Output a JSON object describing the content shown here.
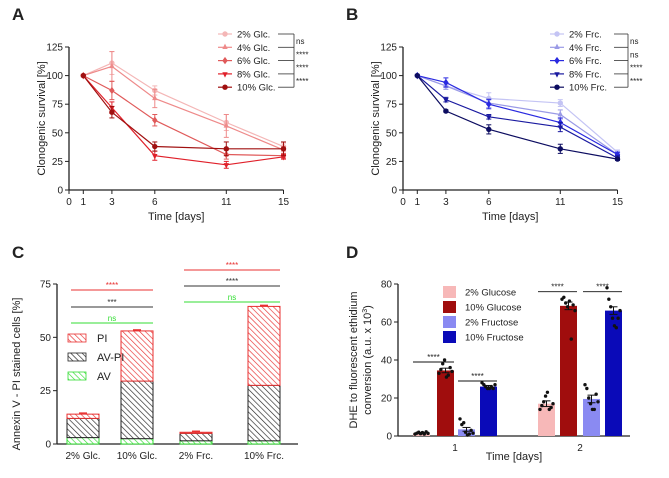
{
  "chart_data": [
    {
      "panel": "A",
      "type": "line",
      "xlabel": "Time [days]",
      "ylabel": "Clonogenic survival [%]",
      "x": [
        1,
        3,
        6,
        11,
        15
      ],
      "xticks": [
        0,
        1,
        3,
        6,
        11,
        15
      ],
      "yticks": [
        0,
        25,
        50,
        75,
        100,
        125
      ],
      "ylim": [
        0,
        125
      ],
      "legend": "top-right",
      "series": [
        {
          "name": "2% Glc.",
          "color": "#f4b6b6",
          "marker": "circle",
          "values": [
            100,
            111,
            87,
            59,
            38
          ],
          "err": [
            0,
            10,
            4,
            7,
            3
          ]
        },
        {
          "name": "4% Glc.",
          "color": "#ee8a8a",
          "marker": "triangle-up",
          "values": [
            100,
            108,
            80,
            56,
            35
          ],
          "err": [
            0,
            13,
            8,
            10,
            3
          ]
        },
        {
          "name": "6% Glc.",
          "color": "#e05a5a",
          "marker": "diamond",
          "values": [
            100,
            87,
            61,
            31,
            30
          ],
          "err": [
            0,
            8,
            5,
            4,
            2
          ]
        },
        {
          "name": "8% Glc.",
          "color": "#e0202a",
          "marker": "triangle-down",
          "values": [
            100,
            72,
            30,
            22,
            29
          ],
          "err": [
            0,
            5,
            4,
            3,
            2
          ]
        },
        {
          "name": "10% Glc.",
          "color": "#a01010",
          "marker": "circle",
          "values": [
            100,
            68,
            38,
            36,
            36
          ],
          "err": [
            0,
            5,
            4,
            6,
            6
          ]
        }
      ],
      "significance": [
        "ns",
        "****",
        "****",
        "****"
      ]
    },
    {
      "panel": "B",
      "type": "line",
      "xlabel": "Time [days]",
      "ylabel": "Clonogenic survival [%]",
      "x": [
        1,
        3,
        6,
        11,
        15
      ],
      "xticks": [
        0,
        1,
        3,
        6,
        11,
        15
      ],
      "yticks": [
        0,
        25,
        50,
        75,
        100,
        125
      ],
      "ylim": [
        0,
        125
      ],
      "legend": "top-right",
      "series": [
        {
          "name": "2% Frc.",
          "color": "#c4c4f4",
          "marker": "circle",
          "values": [
            100,
            91,
            80,
            76,
            33
          ],
          "err": [
            0,
            3,
            5,
            3,
            2
          ]
        },
        {
          "name": "4% Frc.",
          "color": "#9a9ae6",
          "marker": "triangle-up",
          "values": [
            100,
            91,
            76,
            66,
            31
          ],
          "err": [
            0,
            3,
            4,
            4,
            2
          ]
        },
        {
          "name": "6% Frc.",
          "color": "#2a2ae0",
          "marker": "diamond",
          "values": [
            100,
            94,
            75,
            59,
            31
          ],
          "err": [
            0,
            4,
            4,
            4,
            2
          ]
        },
        {
          "name": "8% Frc.",
          "color": "#1a1aa0",
          "marker": "triangle-down",
          "values": [
            100,
            79,
            64,
            55,
            28
          ],
          "err": [
            0,
            2,
            2,
            4,
            2
          ]
        },
        {
          "name": "10% Frc.",
          "color": "#0c0c60",
          "marker": "circle",
          "values": [
            100,
            69,
            53,
            36,
            27
          ],
          "err": [
            0,
            1,
            4,
            4,
            1
          ]
        }
      ],
      "significance": [
        "ns",
        "ns",
        "****",
        "****"
      ]
    },
    {
      "panel": "C",
      "type": "bar",
      "stacked": true,
      "ylabel": "Annexin V - PI stained cells [%]",
      "categories": [
        "2% Glc.",
        "10% Glc.",
        "2% Frc.",
        "10% Frc."
      ],
      "yticks": [
        0,
        25,
        50,
        75
      ],
      "ylim": [
        0,
        75
      ],
      "legend": "left",
      "series": [
        {
          "name": "AV",
          "color": "#33dd33",
          "values": [
            3,
            2.5,
            1.5,
            1.5
          ]
        },
        {
          "name": "AV-PI",
          "color": "#222222",
          "values": [
            9,
            27,
            3.5,
            26
          ]
        },
        {
          "name": "PI",
          "color": "#e83030",
          "values": [
            2,
            23.5,
            0.5,
            37
          ]
        }
      ],
      "significance": [
        {
          "groups": [
            "2% Glc.",
            "10% Glc."
          ],
          "series": "PI",
          "label": "****",
          "color": "#e83030"
        },
        {
          "groups": [
            "2% Glc.",
            "10% Glc."
          ],
          "series": "AV-PI",
          "label": "***",
          "color": "#333333"
        },
        {
          "groups": [
            "2% Glc.",
            "10% Glc."
          ],
          "series": "AV",
          "label": "ns",
          "color": "#33dd33"
        },
        {
          "groups": [
            "2% Frc.",
            "10% Frc."
          ],
          "series": "PI",
          "label": "****",
          "color": "#e83030"
        },
        {
          "groups": [
            "2% Frc.",
            "10% Frc."
          ],
          "series": "AV-PI",
          "label": "****",
          "color": "#333333"
        },
        {
          "groups": [
            "2% Frc.",
            "10% Frc."
          ],
          "series": "AV",
          "label": "ns",
          "color": "#33dd33"
        }
      ]
    },
    {
      "panel": "D",
      "type": "bar",
      "xlabel": "Time [days]",
      "ylabel": "DHE to fluorescent ethidium conversion (a.u. x 10³)",
      "ylabel_line1": "DHE to fluorescent ethidium",
      "ylabel_line2": "conversion (a.u. x 10",
      "ylabel_sup": "3",
      "ylabel_end": ")",
      "categories": [
        "1",
        "2"
      ],
      "yticks": [
        0,
        20,
        40,
        60,
        80
      ],
      "ylim": [
        0,
        80
      ],
      "legend": "top-left",
      "series": [
        {
          "name": "2% Glucose",
          "color": "#f7b8b8",
          "values": [
            1.5,
            17
          ],
          "err": [
            0.3,
            1.5
          ],
          "points": [
            [
              1,
              1.5,
              2,
              1.2,
              1.8,
              1,
              2.2,
              1.4
            ],
            [
              14,
              16,
              18,
              21,
              23,
              14,
              15,
              17
            ]
          ]
        },
        {
          "name": "10% Glucose",
          "color": "#a00d0d",
          "values": [
            34.5,
            68.5
          ],
          "err": [
            1.2,
            2
          ],
          "points": [
            [
              33,
              35,
              38,
              40,
              31,
              32,
              36,
              34
            ],
            [
              72,
              73,
              70,
              68,
              71,
              51,
              69,
              66
            ]
          ]
        },
        {
          "name": "2% Fructose",
          "color": "#8a8af2",
          "values": [
            3.5,
            19.5
          ],
          "err": [
            1,
            2
          ],
          "points": [
            [
              9,
              6,
              7,
              2,
              0.5,
              1,
              3,
              1.5
            ],
            [
              27,
              25,
              20,
              17,
              14,
              14,
              22,
              18
            ]
          ]
        },
        {
          "name": "10% Fructose",
          "color": "#0a0ab8",
          "values": [
            26,
            66
          ],
          "err": [
            0.6,
            2
          ],
          "points": [
            [
              28,
              27,
              26,
              25,
              25,
              26,
              25,
              27
            ],
            [
              78,
              72,
              68,
              62,
              58,
              57,
              62,
              66
            ]
          ]
        }
      ],
      "significance": [
        {
          "day": "1",
          "groups": [
            "2% Glucose",
            "10% Glucose"
          ],
          "label": "****"
        },
        {
          "day": "1",
          "groups": [
            "2% Fructose",
            "10% Fructose"
          ],
          "label": "****"
        },
        {
          "day": "2",
          "groups": [
            "2% Glucose",
            "10% Glucose"
          ],
          "label": "****"
        },
        {
          "day": "2",
          "groups": [
            "2% Fructose",
            "10% Fructose"
          ],
          "label": "****"
        }
      ]
    }
  ]
}
